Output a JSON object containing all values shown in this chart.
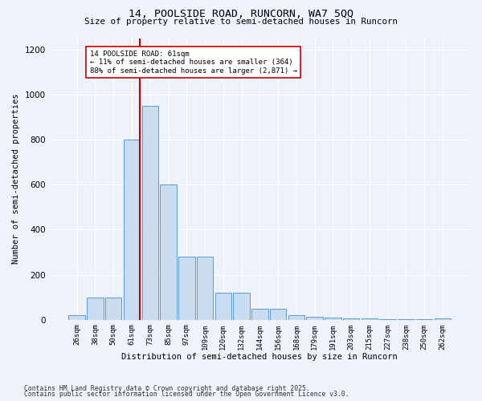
{
  "title_line1": "14, POOLSIDE ROAD, RUNCORN, WA7 5QQ",
  "title_line2": "Size of property relative to semi-detached houses in Runcorn",
  "xlabel": "Distribution of semi-detached houses by size in Runcorn",
  "ylabel": "Number of semi-detached properties",
  "categories": [
    "26sqm",
    "38sqm",
    "50sqm",
    "61sqm",
    "73sqm",
    "85sqm",
    "97sqm",
    "109sqm",
    "120sqm",
    "132sqm",
    "144sqm",
    "156sqm",
    "168sqm",
    "179sqm",
    "191sqm",
    "203sqm",
    "215sqm",
    "227sqm",
    "238sqm",
    "250sqm",
    "262sqm"
  ],
  "values": [
    20,
    100,
    100,
    800,
    950,
    600,
    280,
    280,
    120,
    120,
    50,
    50,
    20,
    15,
    10,
    5,
    5,
    3,
    2,
    2,
    5
  ],
  "bar_color": "#c9dcf0",
  "bar_edge_color": "#5b9bd5",
  "vline_index": 3,
  "vline_color": "#cc0000",
  "annotation_text": "14 POOLSIDE ROAD: 61sqm\n← 11% of semi-detached houses are smaller (364)\n88% of semi-detached houses are larger (2,871) →",
  "annotation_box_color": "white",
  "annotation_box_edge_color": "#cc0000",
  "ylim": [
    0,
    1250
  ],
  "yticks": [
    0,
    200,
    400,
    600,
    800,
    1000,
    1200
  ],
  "footer_line1": "Contains HM Land Registry data © Crown copyright and database right 2025.",
  "footer_line2": "Contains public sector information licensed under the Open Government Licence v3.0.",
  "background_color": "#eef2fa",
  "grid_color": "white"
}
